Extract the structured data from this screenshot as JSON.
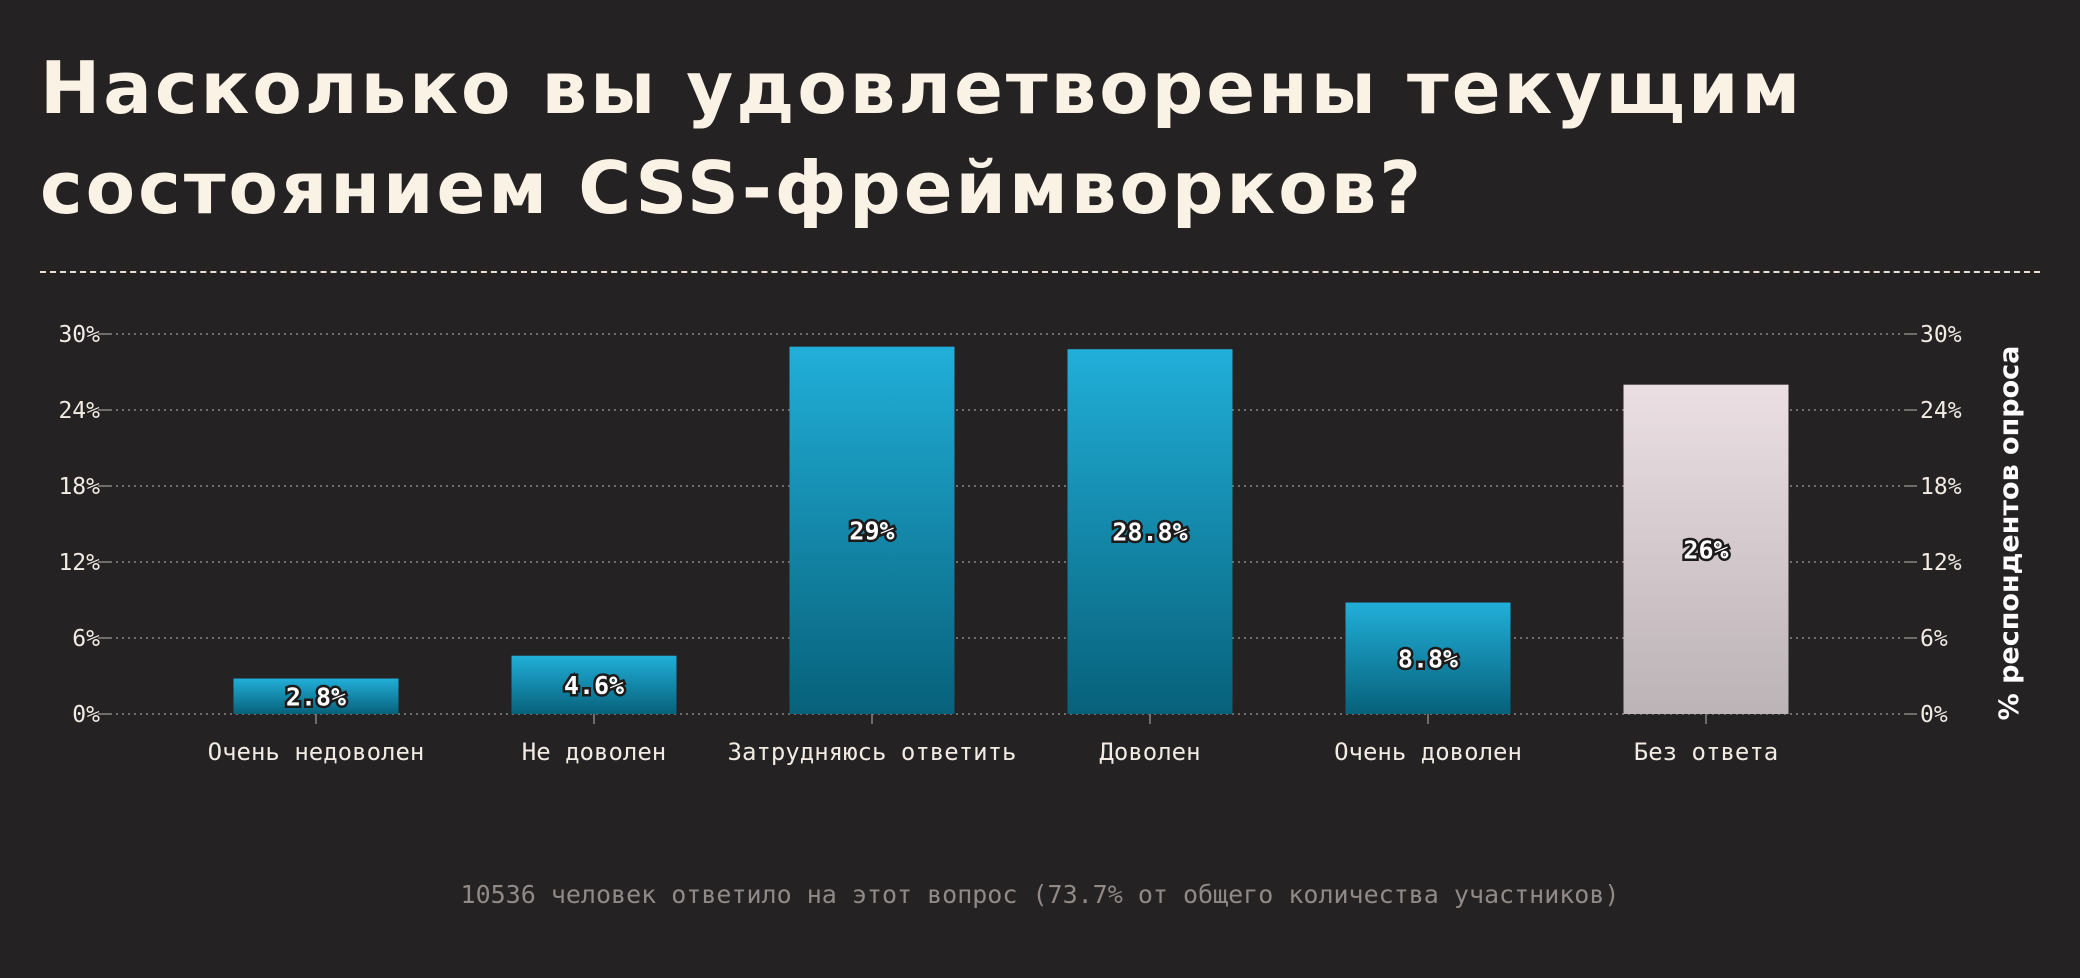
{
  "title": "Насколько вы удовлетворены текущим состоянием CSS-фреймворков?",
  "footnote": "10536 человек ответило на этот вопрос (73.7% от общего количества участников)",
  "colors": {
    "background": "#252223",
    "bar_top": "#21afd9",
    "bar_bottom": "#07617a",
    "neutral_top": "#ebdfe3",
    "neutral_bottom": "#bcb3b6",
    "grid": "#8a8581",
    "text": "#f1ebe4"
  },
  "chart_data": {
    "type": "bar",
    "categories": [
      "Очень недоволен",
      "Не доволен",
      "Затрудняюсь ответить",
      "Доволен",
      "Очень доволен",
      "Без ответа"
    ],
    "values": [
      2.8,
      4.6,
      29,
      28.8,
      8.8,
      26
    ],
    "value_labels": [
      "2.8%",
      "4.6%",
      "29%",
      "28.8%",
      "8.8%",
      "26%"
    ],
    "neutral_categories": [
      "Без ответа"
    ],
    "yticks": [
      0,
      6,
      12,
      18,
      24,
      30
    ],
    "ytick_labels": [
      "0%",
      "6%",
      "12%",
      "18%",
      "24%",
      "30%"
    ],
    "ylim": [
      0,
      30
    ],
    "ylabel": "% респондентов опроса",
    "grid": true
  }
}
